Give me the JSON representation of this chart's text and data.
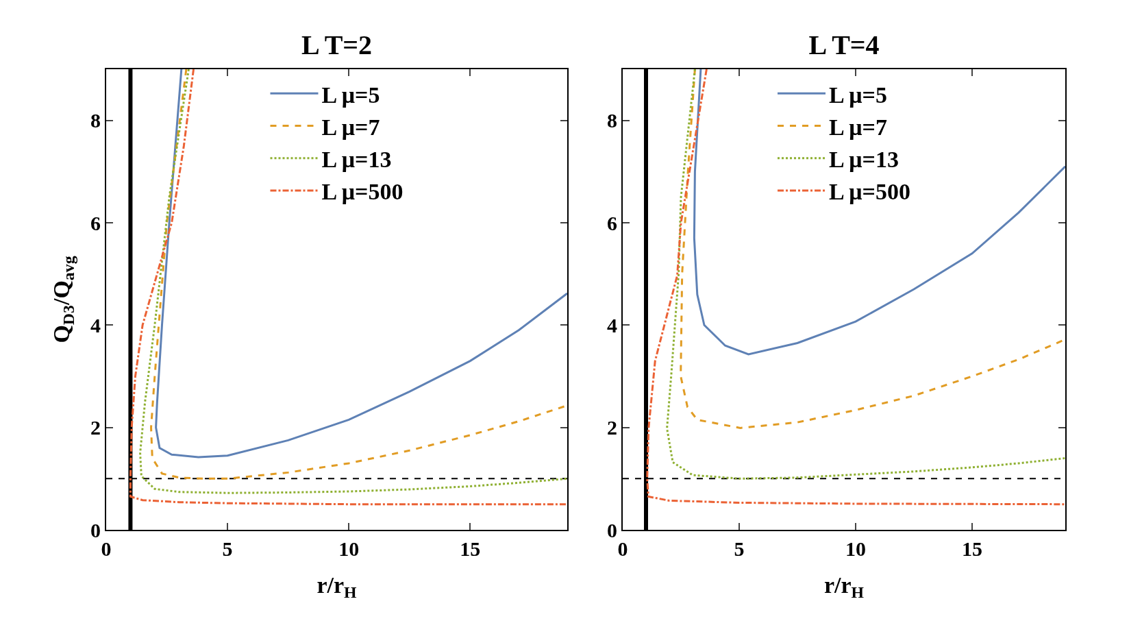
{
  "chart_data": [
    {
      "type": "line",
      "title": "L T=2",
      "xlabel": "r/r$_{H}$",
      "ylabel": "Q$_{D3}$/Q$_{avg}$",
      "xlim": [
        0,
        19
      ],
      "ylim": [
        0,
        9
      ],
      "xticks": [
        0,
        5,
        10,
        15
      ],
      "yticks": [
        0,
        2,
        4,
        6,
        8
      ],
      "grid": false,
      "legend": "top",
      "marker": "none",
      "series": [
        {
          "name": "L μ=5",
          "color": "#5e81b5",
          "line_style": "solid",
          "x": [
            3.1,
            2.6,
            2.3,
            2.1,
            2.05,
            2.2,
            2.7,
            3.8,
            5,
            7.5,
            10,
            12.5,
            15,
            17,
            19
          ],
          "values": [
            9,
            6,
            4,
            2.5,
            2,
            1.6,
            1.47,
            1.42,
            1.45,
            1.75,
            2.15,
            2.7,
            3.3,
            3.9,
            4.62
          ]
        },
        {
          "name": "L μ=7",
          "color": "#e19c24",
          "line_style": "dashed",
          "x": [
            3.3,
            2.5,
            2.0,
            1.85,
            1.9,
            2.3,
            3,
            4,
            5,
            7.5,
            10,
            12.5,
            15,
            17,
            19
          ],
          "values": [
            9,
            6,
            3,
            2.0,
            1.4,
            1.1,
            1.02,
            1.0,
            1.0,
            1.12,
            1.3,
            1.55,
            1.85,
            2.12,
            2.43
          ]
        },
        {
          "name": "L μ=13",
          "color": "#8fb032",
          "line_style": "dotted",
          "x": [
            3.4,
            2.6,
            2.0,
            1.6,
            1.4,
            1.45,
            2,
            3,
            5,
            7.5,
            10,
            12.5,
            15,
            17,
            19
          ],
          "values": [
            9,
            6.5,
            4,
            2.5,
            1.5,
            1.05,
            0.8,
            0.74,
            0.72,
            0.73,
            0.75,
            0.79,
            0.85,
            0.92,
            1.0
          ]
        },
        {
          "name": "L μ=500",
          "color": "#eb6235",
          "line_style": "dashdot",
          "x": [
            3.6,
            3.2,
            2.7,
            2.1,
            1.5,
            1.2,
            1.05,
            1.0,
            1.0,
            1.5,
            3,
            5,
            10,
            15,
            19
          ],
          "values": [
            9,
            7.5,
            6,
            5,
            4,
            3,
            2,
            1,
            0.65,
            0.58,
            0.54,
            0.52,
            0.5,
            0.5,
            0.5
          ]
        }
      ],
      "ref_lines": [
        {
          "axis": "x",
          "value": 1,
          "color": "#000000",
          "line_style": "solid"
        },
        {
          "axis": "y",
          "value": 1,
          "color": "#000000",
          "line_style": "dashed"
        }
      ]
    },
    {
      "type": "line",
      "title": "L T=4",
      "xlabel": "r/r$_{H}$",
      "xlim": [
        0,
        19
      ],
      "ylim": [
        0,
        9
      ],
      "xticks": [
        0,
        5,
        10,
        15
      ],
      "yticks": [
        0,
        2,
        4,
        6,
        8
      ],
      "grid": false,
      "legend": "top",
      "marker": "none",
      "series": [
        {
          "name": "L μ=5",
          "color": "#5e81b5",
          "line_style": "solid",
          "x": [
            3.35,
            3.1,
            3.07,
            3.2,
            3.5,
            4.4,
            5.4,
            7.5,
            10,
            12.5,
            15,
            17,
            19
          ],
          "values": [
            9,
            7,
            5.7,
            4.6,
            4.0,
            3.6,
            3.43,
            3.65,
            4.07,
            4.7,
            5.4,
            6.2,
            7.1
          ]
        },
        {
          "name": "L μ=7",
          "color": "#e19c24",
          "line_style": "dashed",
          "x": [
            3.1,
            2.8,
            2.55,
            2.49,
            2.78,
            3.2,
            5.05,
            7.5,
            10,
            12.5,
            15,
            17,
            19
          ],
          "values": [
            9,
            7,
            5,
            3.0,
            2.4,
            2.15,
            1.99,
            2.1,
            2.34,
            2.62,
            3.0,
            3.33,
            3.72
          ]
        },
        {
          "name": "L μ=13",
          "color": "#8fb032",
          "line_style": "dotted",
          "x": [
            3.1,
            2.5,
            2.4,
            2.08,
            1.9,
            2.15,
            3,
            5,
            7.5,
            10,
            12.5,
            15,
            17,
            19
          ],
          "values": [
            9,
            6.5,
            5.0,
            3,
            1.98,
            1.32,
            1.07,
            1.0,
            1.02,
            1.08,
            1.14,
            1.22,
            1.3,
            1.4
          ]
        },
        {
          "name": "L μ=500",
          "color": "#eb6235",
          "line_style": "dashdot",
          "x": [
            3.6,
            2.5,
            2.34,
            1.39,
            1.11,
            1.05,
            1.1,
            2,
            5,
            10,
            19
          ],
          "values": [
            9,
            6,
            4.97,
            3.3,
            1.98,
            1,
            0.65,
            0.57,
            0.53,
            0.51,
            0.5
          ]
        }
      ],
      "ref_lines": [
        {
          "axis": "x",
          "value": 1,
          "color": "#000000",
          "line_style": "solid"
        },
        {
          "axis": "y",
          "value": 1,
          "color": "#000000",
          "line_style": "dashed"
        }
      ]
    }
  ]
}
